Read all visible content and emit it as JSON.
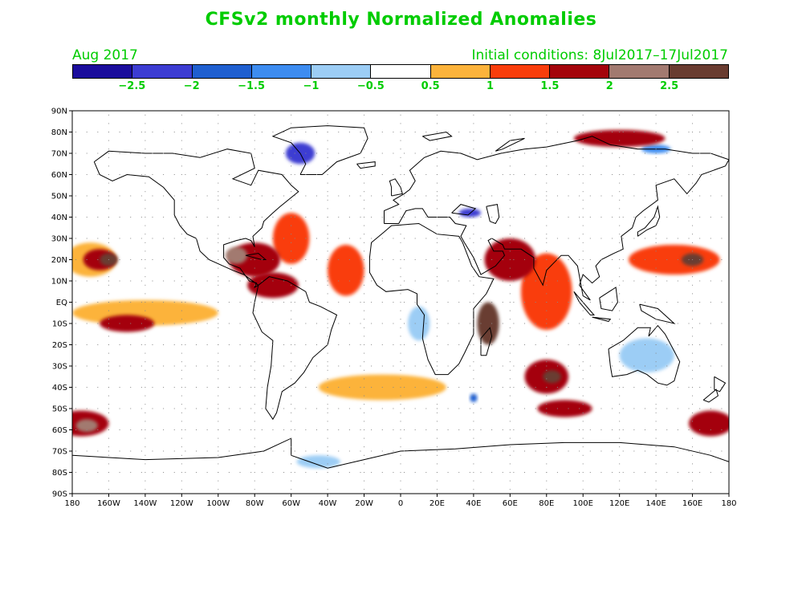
{
  "title": "CFSv2 monthly Normalized Anomalies",
  "month_label": "Aug 2017",
  "initial_conditions": "Initial conditions: 8Jul2017–17Jul2017",
  "colorbar": {
    "colors": [
      "#1a0c9c",
      "#3c3cd2",
      "#1f5fd0",
      "#3d8cf0",
      "#9ccdf5",
      "#ffffff",
      "#fcb33b",
      "#f93d0b",
      "#a4040b",
      "#a27a70",
      "#693c30"
    ],
    "labels": [
      "−2.5",
      "−2",
      "−1.5",
      "−1",
      "−0.5",
      "0.5",
      "1",
      "1.5",
      "2",
      "2.5"
    ]
  },
  "map": {
    "lat_labels": [
      "90N",
      "80N",
      "70N",
      "60N",
      "50N",
      "40N",
      "30N",
      "20N",
      "10N",
      "EQ",
      "10S",
      "20S",
      "30S",
      "40S",
      "50S",
      "60S",
      "70S",
      "80S",
      "90S"
    ],
    "lon_labels": [
      "180",
      "160W",
      "140W",
      "120W",
      "100W",
      "80W",
      "60W",
      "40W",
      "20W",
      "0",
      "20E",
      "40E",
      "60E",
      "80E",
      "100E",
      "120E",
      "140E",
      "160E",
      "180"
    ],
    "anomaly_regions": [
      {
        "lon": -170,
        "lat": 20,
        "rx": 14,
        "ry": 8,
        "level": 0.9
      },
      {
        "lon": -165,
        "lat": 20,
        "rx": 9,
        "ry": 5,
        "level": 1.6
      },
      {
        "lon": -160,
        "lat": 20,
        "rx": 5,
        "ry": 3,
        "level": 2.6
      },
      {
        "lon": -140,
        "lat": -5,
        "rx": 40,
        "ry": 6,
        "level": 0.8
      },
      {
        "lon": -150,
        "lat": -10,
        "rx": 15,
        "ry": 4,
        "level": 1.5
      },
      {
        "lon": -175,
        "lat": -57,
        "rx": 15,
        "ry": 6,
        "level": 1.6
      },
      {
        "lon": -172,
        "lat": -58,
        "rx": 6,
        "ry": 3,
        "level": 2.3
      },
      {
        "lon": -80,
        "lat": 20,
        "rx": 14,
        "ry": 8,
        "level": 1.5
      },
      {
        "lon": -90,
        "lat": 22,
        "rx": 6,
        "ry": 4,
        "level": 2.1
      },
      {
        "lon": -60,
        "lat": 30,
        "rx": 10,
        "ry": 12,
        "level": 1.4
      },
      {
        "lon": -70,
        "lat": 8,
        "rx": 14,
        "ry": 6,
        "level": 1.6
      },
      {
        "lon": -30,
        "lat": 15,
        "rx": 10,
        "ry": 12,
        "level": 1.2
      },
      {
        "lon": 80,
        "lat": 5,
        "rx": 14,
        "ry": 18,
        "level": 1.3
      },
      {
        "lon": 48,
        "lat": -10,
        "rx": 6,
        "ry": 10,
        "level": 2.6
      },
      {
        "lon": 80,
        "lat": -35,
        "rx": 12,
        "ry": 8,
        "level": 1.6
      },
      {
        "lon": 83,
        "lat": -35,
        "rx": 5,
        "ry": 3,
        "level": 2.6
      },
      {
        "lon": 60,
        "lat": 20,
        "rx": 14,
        "ry": 10,
        "level": 1.5
      },
      {
        "lon": 150,
        "lat": 20,
        "rx": 25,
        "ry": 7,
        "level": 1.2
      },
      {
        "lon": 160,
        "lat": 20,
        "rx": 6,
        "ry": 3,
        "level": 2.6
      },
      {
        "lon": 170,
        "lat": -57,
        "rx": 12,
        "ry": 6,
        "level": 1.5
      },
      {
        "lon": -10,
        "lat": -40,
        "rx": 35,
        "ry": 6,
        "level": 0.9
      },
      {
        "lon": 90,
        "lat": -50,
        "rx": 15,
        "ry": 4,
        "level": 1.5
      },
      {
        "lon": 120,
        "lat": 77,
        "rx": 25,
        "ry": 4,
        "level": 1.6
      },
      {
        "lon": -55,
        "lat": 70,
        "rx": 8,
        "ry": 5,
        "level": -2.4
      },
      {
        "lon": 38,
        "lat": 42,
        "rx": 6,
        "ry": 2,
        "level": -2.2
      },
      {
        "lon": 135,
        "lat": -25,
        "rx": 15,
        "ry": 8,
        "level": -0.7
      },
      {
        "lon": 10,
        "lat": -10,
        "rx": 6,
        "ry": 8,
        "level": -0.6
      },
      {
        "lon": -45,
        "lat": -75,
        "rx": 12,
        "ry": 3,
        "level": -0.8
      },
      {
        "lon": 40,
        "lat": -45,
        "rx": 2,
        "ry": 2,
        "level": -1.6
      },
      {
        "lon": 140,
        "lat": 72,
        "rx": 8,
        "ry": 2,
        "level": -1.2
      }
    ]
  }
}
